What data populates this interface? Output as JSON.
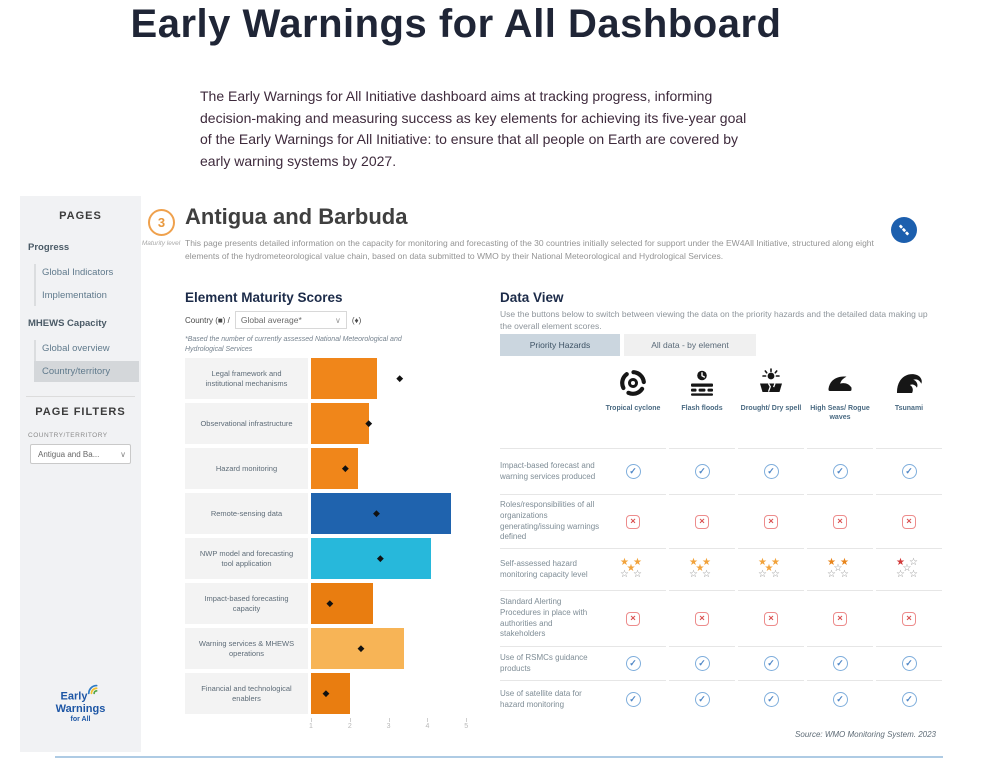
{
  "page": {
    "title": "Early Warnings for All Dashboard",
    "intro": "The Early Warnings for All Initiative dashboard aims at tracking progress, informing decision-making and measuring success as key elements for achieving its five-year goal of the Early Warnings for All Initiative: to ensure that all people on Earth are covered by early warning systems by 2027."
  },
  "sidebar": {
    "pages_title": "PAGES",
    "group1_label": "Progress",
    "group1_items": [
      "Global Indicators",
      "Implementation"
    ],
    "group2_label": "MHEWS Capacity",
    "group2_items": [
      "Global overview",
      "Country/territory"
    ],
    "selected_item": "Country/territory",
    "filters_title": "PAGE FILTERS",
    "filter_label": "COUNTRY/TERRITORY",
    "filter_value": "Antigua and Ba...",
    "logo_lines": [
      "Early",
      "Warnings",
      "for All"
    ]
  },
  "header": {
    "maturity_value": "3",
    "maturity_label": "Maturity level",
    "country_title": "Antigua and Barbuda",
    "description": "This page presents detailed information on the capacity for monitoring and forecasting of the 30 countries initially selected for support under the EW4All Initiative, structured along eight elements of the hydrometeorological value chain, based on data submitted to WMO by their National Meteorological and Hydrological Services."
  },
  "chart_data": {
    "type": "bar",
    "title": "Element Maturity Scores",
    "legend": {
      "country_label": "Country (■) /",
      "dropdown_value": "Global average*",
      "avg_marker": "(♦)"
    },
    "footnote": "*Based the number of currently assessed National Meteorological and Hydrological Services",
    "categories": [
      "Legal framework and institutional mechanisms",
      "Observational infrastructure",
      "Hazard monitoring",
      "Remote-sensing data",
      "NWP model and forecasting tool application",
      "Impact-based forecasting capacity",
      "Warning services & MHEWS operations",
      "Financial and technological enablers"
    ],
    "series": [
      {
        "name": "Country",
        "values": [
          2.7,
          2.5,
          2.2,
          4.6,
          4.1,
          2.6,
          3.4,
          2.0
        ]
      },
      {
        "name": "Global average",
        "values": [
          3.3,
          2.5,
          1.9,
          2.7,
          2.8,
          1.5,
          2.3,
          1.4
        ]
      }
    ],
    "bar_colors": [
      "#F0861A",
      "#F0861A",
      "#F0861A",
      "#1F63AE",
      "#27B8DB",
      "#E97D10",
      "#F7B456",
      "#E97D10"
    ],
    "xlim": [
      1,
      5
    ],
    "x_ticks": [
      1,
      2,
      3,
      4,
      5
    ],
    "grid": false,
    "legend_position": "top"
  },
  "data_view": {
    "title": "Data View",
    "description": "Use the buttons below to switch between viewing the data on the priority hazards and the detailed data making up the overall element scores.",
    "buttons": [
      {
        "label": "Priority Hazards",
        "active": true
      },
      {
        "label": "All data - by element",
        "active": false
      }
    ],
    "hazards": [
      {
        "id": "tropical-cyclone",
        "label": "Tropical cyclone"
      },
      {
        "id": "flash-floods",
        "label": "Flash floods"
      },
      {
        "id": "drought-dry-spell",
        "label": "Drought/ Dry spell"
      },
      {
        "id": "high-seas-rogue-waves",
        "label": "High Seas/ Rogue waves"
      },
      {
        "id": "tsunami",
        "label": "Tsunami"
      }
    ],
    "rows": [
      {
        "label": "Impact-based forecast and warning services produced",
        "cells": [
          {
            "type": "check"
          },
          {
            "type": "check"
          },
          {
            "type": "check"
          },
          {
            "type": "check"
          },
          {
            "type": "check"
          }
        ]
      },
      {
        "label": "Roles/responsibilities of all organizations generating/issuing warnings defined",
        "cells": [
          {
            "type": "cross"
          },
          {
            "type": "cross"
          },
          {
            "type": "cross"
          },
          {
            "type": "cross"
          },
          {
            "type": "cross"
          }
        ]
      },
      {
        "label": "Self-assessed hazard monitoring capacity level",
        "cells": [
          {
            "type": "stars",
            "filled": 3,
            "total": 5,
            "color": "#F2A33C"
          },
          {
            "type": "stars",
            "filled": 3,
            "total": 5,
            "color": "#F2A33C"
          },
          {
            "type": "stars",
            "filled": 3,
            "total": 5,
            "color": "#F2A33C"
          },
          {
            "type": "stars",
            "filled": 2,
            "total": 5,
            "color": "#E8851C"
          },
          {
            "type": "stars",
            "filled": 1,
            "total": 5,
            "color": "#D23B3B"
          }
        ]
      },
      {
        "label": "Standard Alerting Procedures in place with authorities and stakeholders",
        "cells": [
          {
            "type": "cross"
          },
          {
            "type": "cross"
          },
          {
            "type": "cross"
          },
          {
            "type": "cross"
          },
          {
            "type": "cross"
          }
        ]
      },
      {
        "label": "Use of RSMCs guidance products",
        "cells": [
          {
            "type": "check"
          },
          {
            "type": "check"
          },
          {
            "type": "check"
          },
          {
            "type": "check"
          },
          {
            "type": "check"
          }
        ]
      },
      {
        "label": "Use of satellite data for hazard monitoring",
        "cells": [
          {
            "type": "check"
          },
          {
            "type": "check"
          },
          {
            "type": "check"
          },
          {
            "type": "check"
          },
          {
            "type": "check"
          }
        ]
      }
    ],
    "source": "Source: WMO Monitoring System. 2023"
  }
}
